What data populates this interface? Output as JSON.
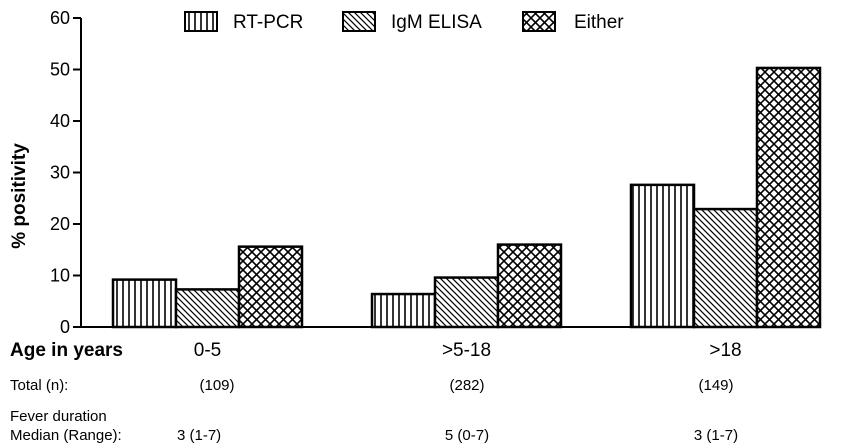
{
  "chart_data": {
    "type": "bar",
    "title": "",
    "ylabel": "% positivity",
    "xlabel": "Age in years",
    "ylim": [
      0,
      60
    ],
    "yticks": [
      0,
      10,
      20,
      30,
      40,
      50,
      60
    ],
    "categories": [
      "0-5",
      ">5-18",
      ">18"
    ],
    "series": [
      {
        "name": "RT-PCR",
        "pattern": "vertical-lines",
        "values": [
          9.2,
          6.4,
          27.6
        ]
      },
      {
        "name": "IgM ELISA",
        "pattern": "diagonal-lines",
        "values": [
          7.3,
          9.6,
          22.9
        ]
      },
      {
        "name": "Either",
        "pattern": "crosshatch",
        "values": [
          15.6,
          16.0,
          50.3
        ]
      }
    ],
    "legend_position": "top",
    "grid": false,
    "bar_stroke_color": "#000000",
    "bar_fill_color": "#ffffff"
  },
  "table_rows": [
    {
      "label": "Total (n):",
      "values": [
        "(109)",
        "(282)",
        "(149)"
      ]
    },
    {
      "label_line1": "Fever duration",
      "label_line2": "Median (Range):",
      "values": [
        "3 (1-7)",
        "5 (0-7)",
        "3 (1-7)"
      ]
    }
  ]
}
